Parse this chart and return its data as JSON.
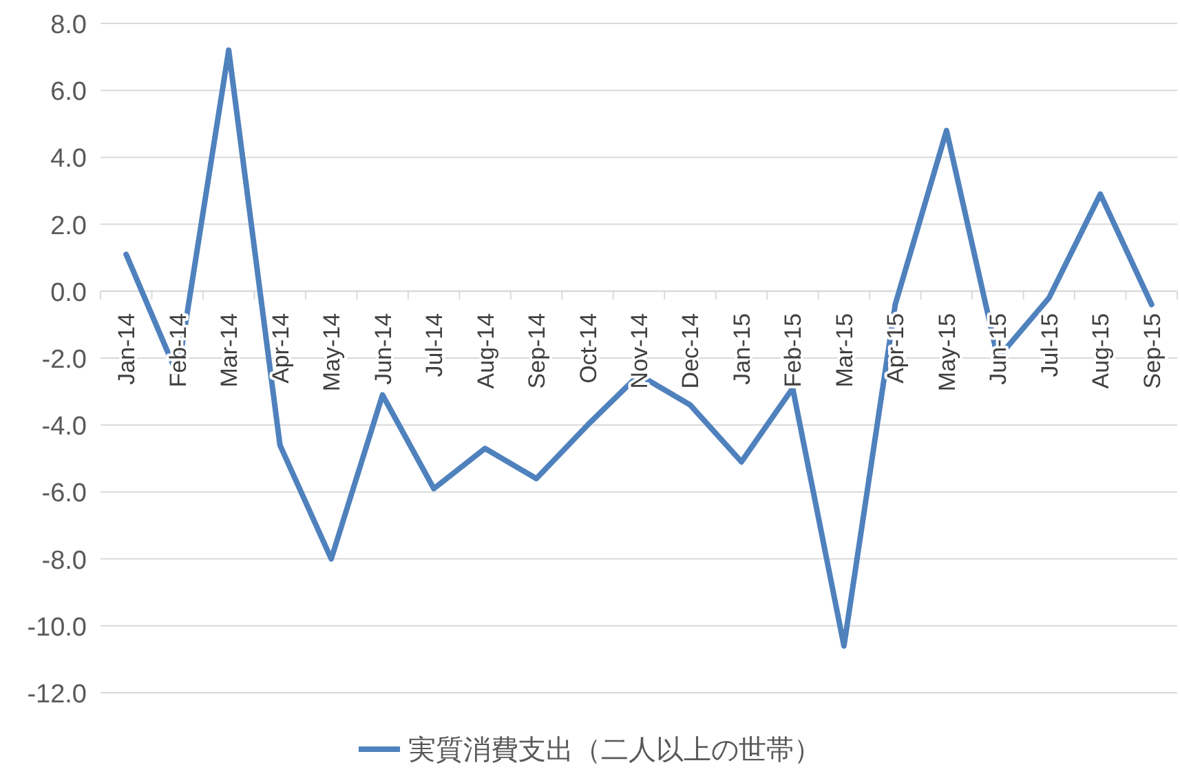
{
  "chart_data": {
    "type": "line",
    "categories": [
      "Jan-14",
      "Feb-14",
      "Mar-14",
      "Apr-14",
      "May-14",
      "Jun-14",
      "Jul-14",
      "Aug-14",
      "Sep-14",
      "Oct-14",
      "Nov-14",
      "Dec-14",
      "Jan-15",
      "Feb-15",
      "Mar-15",
      "Apr-15",
      "May-15",
      "Jun-15",
      "Jul-15",
      "Aug-15",
      "Sep-15"
    ],
    "series": [
      {
        "name": "実質消費支出（二人以上の世帯）",
        "color": "#4f81bd",
        "values": [
          1.1,
          -2.5,
          7.2,
          -4.6,
          -8.0,
          -3.1,
          -5.9,
          -4.7,
          -5.6,
          -4.0,
          -2.5,
          -3.4,
          -5.1,
          -2.9,
          -10.6,
          -0.4,
          4.8,
          -2.0,
          -0.2,
          2.9,
          -0.4
        ]
      }
    ],
    "ylim": [
      -12,
      8
    ],
    "yticks": [
      {
        "value": -12,
        "label": "-12.0"
      },
      {
        "value": -10,
        "label": "-10.0"
      },
      {
        "value": -8,
        "label": "-8.0"
      },
      {
        "value": -6,
        "label": "-6.0"
      },
      {
        "value": -4,
        "label": "-4.0"
      },
      {
        "value": -2,
        "label": "-2.0"
      },
      {
        "value": 0,
        "label": "0.0"
      },
      {
        "value": 2,
        "label": "2.0"
      },
      {
        "value": 4,
        "label": "4.0"
      },
      {
        "value": 6,
        "label": "6.0"
      },
      {
        "value": 8,
        "label": "8.0"
      }
    ],
    "grid": "y",
    "legend": "bottom",
    "marker": "none",
    "line_style": "solid"
  }
}
